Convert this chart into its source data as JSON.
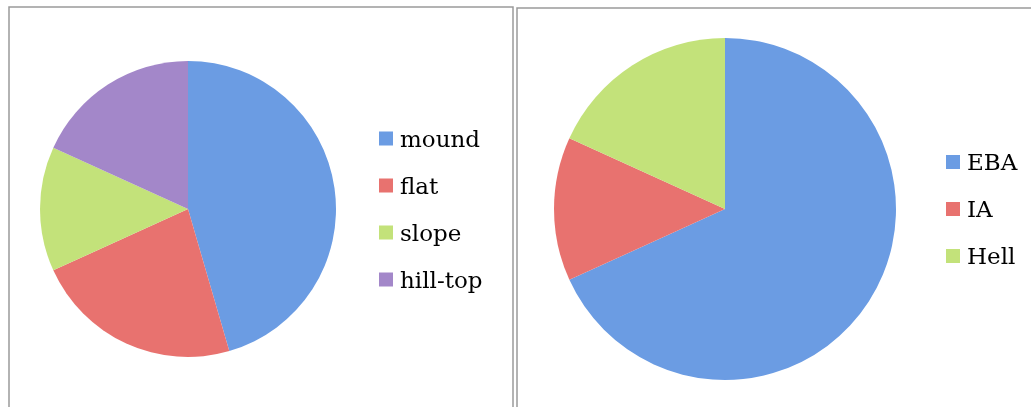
{
  "chart_data": [
    {
      "type": "pie",
      "categories": [
        "mound",
        "flat",
        "slope",
        "hill-top"
      ],
      "values": [
        45.5,
        22.7,
        13.6,
        18.2
      ],
      "colors": [
        "#6b9ce3",
        "#e8726f",
        "#c3e27a",
        "#a387c9"
      ],
      "legend": "right"
    },
    {
      "type": "pie",
      "categories": [
        "EBA",
        "IA",
        "Hell"
      ],
      "values": [
        68.2,
        13.6,
        18.2
      ],
      "colors": [
        "#6b9ce3",
        "#e8726f",
        "#c3e27a"
      ],
      "legend": "right"
    }
  ]
}
